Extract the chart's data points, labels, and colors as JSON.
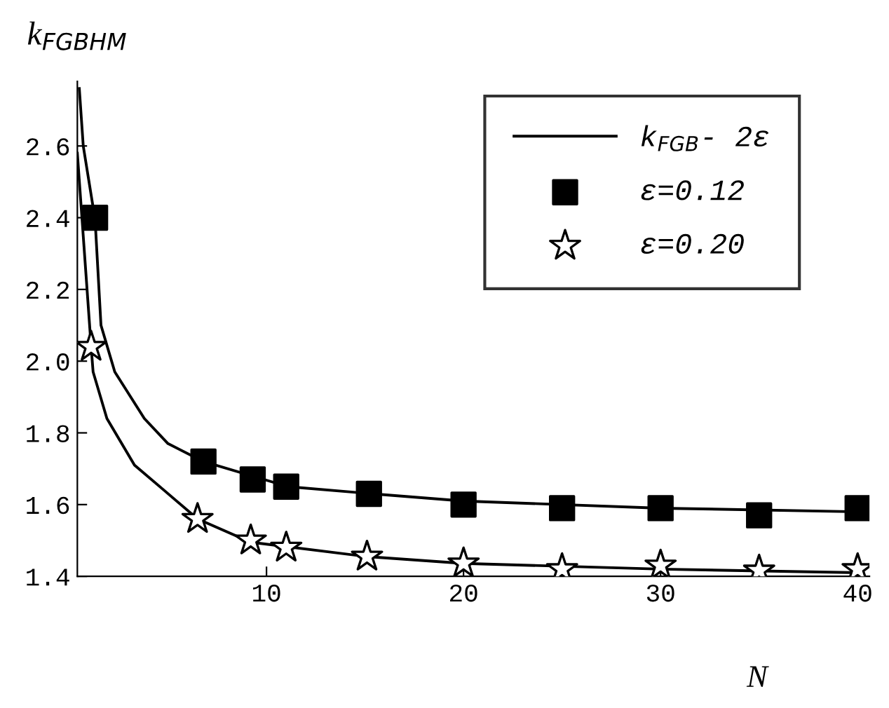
{
  "chart_data": {
    "type": "scatter",
    "ylabel": "k$_{FGBHM}$",
    "xlabel": "N",
    "xlim": [
      0.4,
      40.6
    ],
    "ylim": [
      1.4,
      2.78
    ],
    "xticks": [
      10,
      20,
      30,
      40
    ],
    "yticks": [
      1.4,
      1.6,
      1.8,
      {
        "value": 2,
        "label": "2.0"
      },
      2.2,
      2.4,
      2.6
    ],
    "grid": false,
    "legend": "top right",
    "series": [
      {
        "name": "k$_{FGB}$- 2ε",
        "type": "line",
        "color": "#000000",
        "marker": "none",
        "line_style": "solid",
        "x": [
          0.5,
          0.7,
          1.3,
          1.6,
          2.3,
          3.8,
          5.0,
          6.8,
          11.1,
          15.4,
          20,
          30,
          40
        ],
        "values": [
          2.76,
          2.6,
          2.395,
          2.1,
          1.97,
          1.84,
          1.77,
          1.72,
          1.65,
          1.63,
          1.61,
          1.59,
          1.58
        ]
      },
      {
        "type": "line",
        "color": "#000000",
        "marker": "none",
        "line_style": "solid",
        "x": [
          0.4,
          1.1,
          1.2,
          1.9,
          3.3,
          4.8,
          6.5,
          9.2,
          15.1,
          20,
          30,
          40
        ],
        "values": [
          2.58,
          2.04,
          1.97,
          1.84,
          1.71,
          1.64,
          1.56,
          1.495,
          1.455,
          1.436,
          1.42,
          1.41
        ]
      },
      {
        "name": "ε=0.12",
        "color": "#000000",
        "marker": "square",
        "x": [
          1.3,
          6.8,
          9.3,
          11,
          15.2,
          20,
          25,
          30,
          35,
          40
        ],
        "values": [
          2.4,
          1.72,
          1.67,
          1.65,
          1.63,
          1.6,
          1.59,
          1.59,
          1.57,
          1.59
        ]
      },
      {
        "name": "ε=0.20",
        "color": "#ffffff",
        "marker": "star",
        "x": [
          1.1,
          6.5,
          9.2,
          11,
          15.1,
          20,
          25,
          30,
          35,
          40
        ],
        "values": [
          2.04,
          1.56,
          1.5,
          1.48,
          1.455,
          1.436,
          1.42,
          1.43,
          1.416,
          1.42
        ]
      }
    ]
  }
}
